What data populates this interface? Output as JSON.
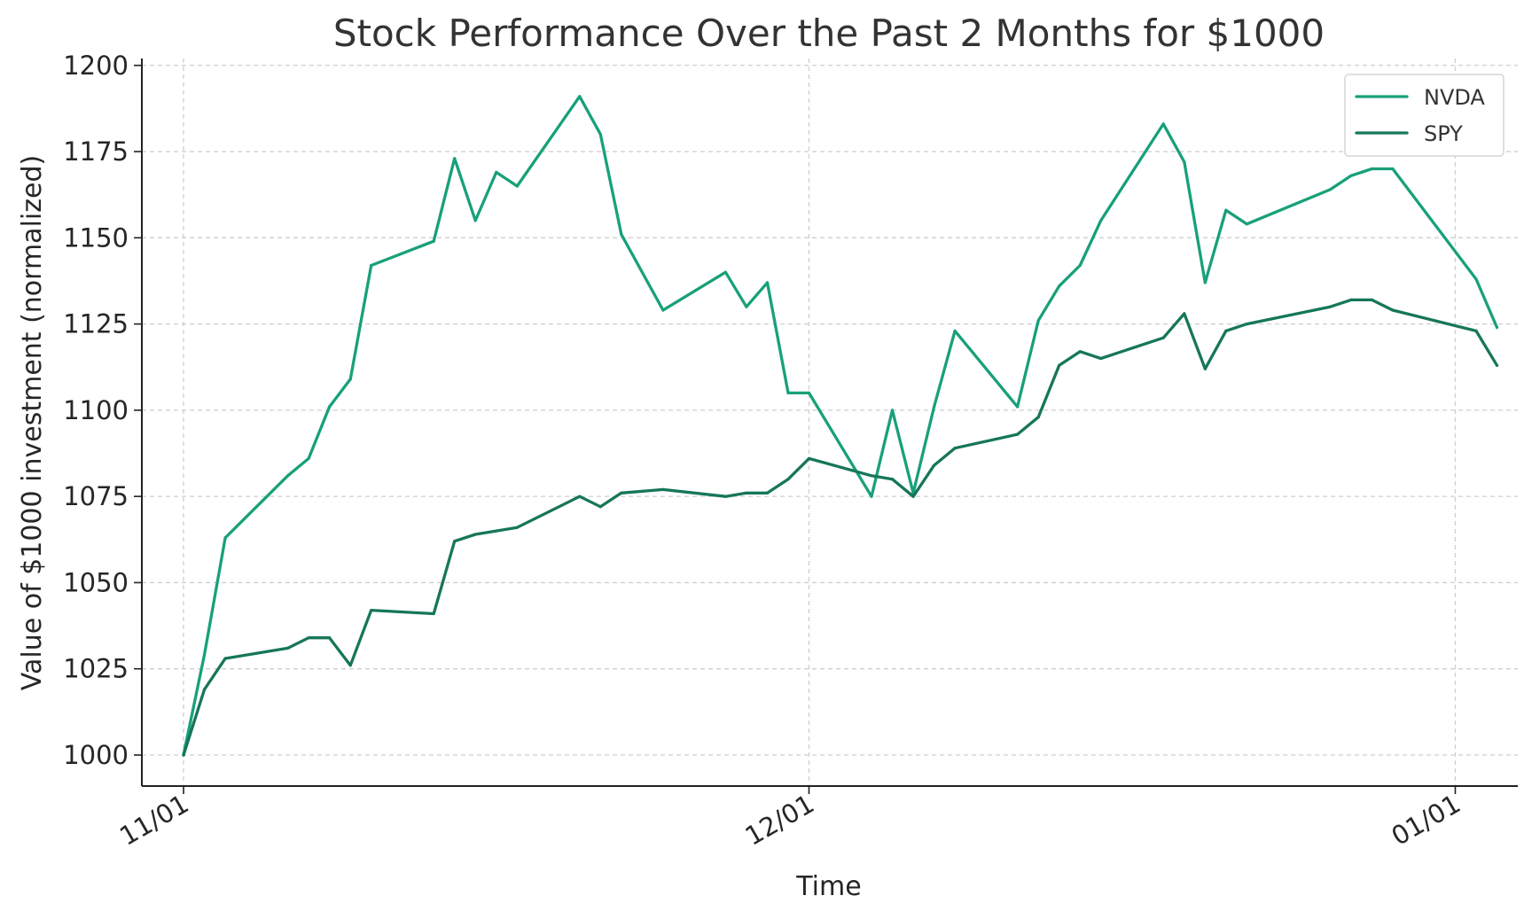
{
  "chart_data": {
    "type": "line",
    "title": "Stock Performance Over the Past 2 Months for $1000",
    "xlabel": "Time",
    "ylabel": "Value of $1000 investment (normalized)",
    "ylim": [
      991,
      1202
    ],
    "xlim": [
      "2023-10-30",
      "2024-01-04"
    ],
    "x_tick_labels": [
      {
        "date": "2023-11-01",
        "label": "11/01"
      },
      {
        "date": "2023-12-01",
        "label": "12/01"
      },
      {
        "date": "2024-01-01",
        "label": "01/01"
      }
    ],
    "y_ticks": [
      1000,
      1025,
      1050,
      1075,
      1100,
      1125,
      1150,
      1175,
      1200
    ],
    "grid": true,
    "legend_position": "top-right",
    "x": [
      "2023-11-01",
      "2023-11-02",
      "2023-11-03",
      "2023-11-06",
      "2023-11-07",
      "2023-11-08",
      "2023-11-09",
      "2023-11-10",
      "2023-11-13",
      "2023-11-14",
      "2023-11-15",
      "2023-11-16",
      "2023-11-17",
      "2023-11-20",
      "2023-11-21",
      "2023-11-22",
      "2023-11-24",
      "2023-11-27",
      "2023-11-28",
      "2023-11-29",
      "2023-11-30",
      "2023-12-01",
      "2023-12-04",
      "2023-12-05",
      "2023-12-06",
      "2023-12-07",
      "2023-12-08",
      "2023-12-11",
      "2023-12-12",
      "2023-12-13",
      "2023-12-14",
      "2023-12-15",
      "2023-12-18",
      "2023-12-19",
      "2023-12-20",
      "2023-12-21",
      "2023-12-22",
      "2023-12-26",
      "2023-12-27",
      "2023-12-28",
      "2023-12-29",
      "2024-01-02",
      "2024-01-03"
    ],
    "series": [
      {
        "name": "NVDA",
        "color": "#18a07a",
        "values": [
          1000,
          1029,
          1063,
          1081,
          1086,
          1101,
          1109,
          1142,
          1149,
          1173,
          1155,
          1169,
          1165,
          1191,
          1180,
          1151,
          1129,
          1140,
          1130,
          1137,
          1105,
          1105,
          1075,
          1100,
          1076,
          1101,
          1123,
          1101,
          1126,
          1136,
          1142,
          1155,
          1183,
          1172,
          1137,
          1158,
          1154,
          1164,
          1168,
          1170,
          1170,
          1138,
          1124
        ]
      },
      {
        "name": "SPY",
        "color": "#16765a",
        "values": [
          1000,
          1019,
          1028,
          1031,
          1034,
          1034,
          1026,
          1042,
          1041,
          1062,
          1064,
          1065,
          1066,
          1075,
          1072,
          1076,
          1077,
          1075,
          1076,
          1076,
          1080,
          1086,
          1081,
          1080,
          1075,
          1084,
          1089,
          1093,
          1098,
          1113,
          1117,
          1115,
          1121,
          1128,
          1112,
          1123,
          1125,
          1130,
          1132,
          1132,
          1129,
          1123,
          1113
        ]
      }
    ]
  }
}
